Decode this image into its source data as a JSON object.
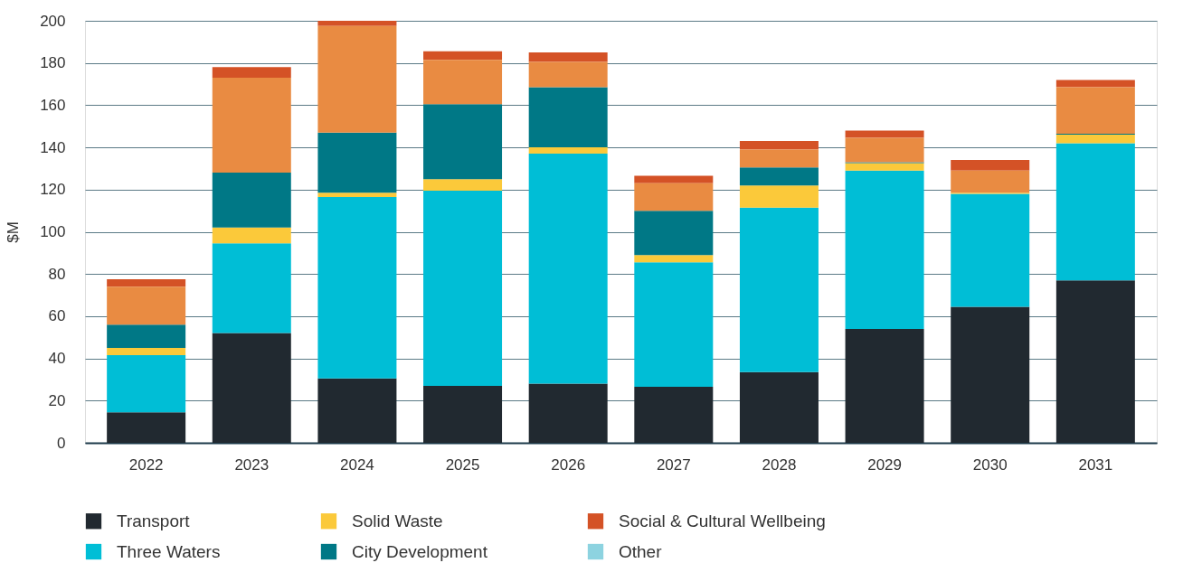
{
  "chart_data": {
    "type": "bar",
    "stacked": true,
    "ylabel": "$M",
    "categories": [
      "2022",
      "2023",
      "2024",
      "2025",
      "2026",
      "2027",
      "2028",
      "2029",
      "2030",
      "2031"
    ],
    "series": [
      {
        "name": "Transport",
        "color": "#212930",
        "values": [
          14.5,
          52,
          30.5,
          27,
          28,
          26.5,
          33.5,
          54,
          64.5,
          77
        ]
      },
      {
        "name": "Three Waters",
        "color": "#00bed6",
        "values": [
          27,
          42.5,
          86,
          92.5,
          109,
          59,
          78,
          75,
          53.5,
          65
        ]
      },
      {
        "name": "Solid Waste",
        "color": "#fbc93a",
        "values": [
          3.5,
          7.5,
          2,
          5.5,
          3,
          3.5,
          10.5,
          3.5,
          0.5,
          4
        ]
      },
      {
        "name": "City Development",
        "color": "#007886",
        "values": [
          11,
          26,
          28.5,
          35.5,
          28.5,
          21,
          8.5,
          0.5,
          0,
          0.5
        ]
      },
      {
        "color": "#e98b42",
        "values": [
          18,
          45,
          50.5,
          21,
          12,
          13,
          8.5,
          11.5,
          10.5,
          22
        ]
      },
      {
        "name": "Social & Cultural Wellbeing",
        "color": "#d45226",
        "values": [
          3.5,
          5,
          2.5,
          4,
          4.5,
          3.5,
          4,
          3.5,
          5,
          3.5
        ]
      },
      {
        "name": "Other",
        "color": "#8dd3e0",
        "values": [
          0,
          0,
          0,
          0,
          0,
          0,
          0,
          0,
          0,
          0
        ]
      }
    ],
    "ylim": [
      0,
      200
    ],
    "yticks": [
      0,
      20,
      40,
      60,
      80,
      100,
      120,
      140,
      160,
      180,
      200
    ],
    "grid": "y",
    "legend": "bottom"
  }
}
